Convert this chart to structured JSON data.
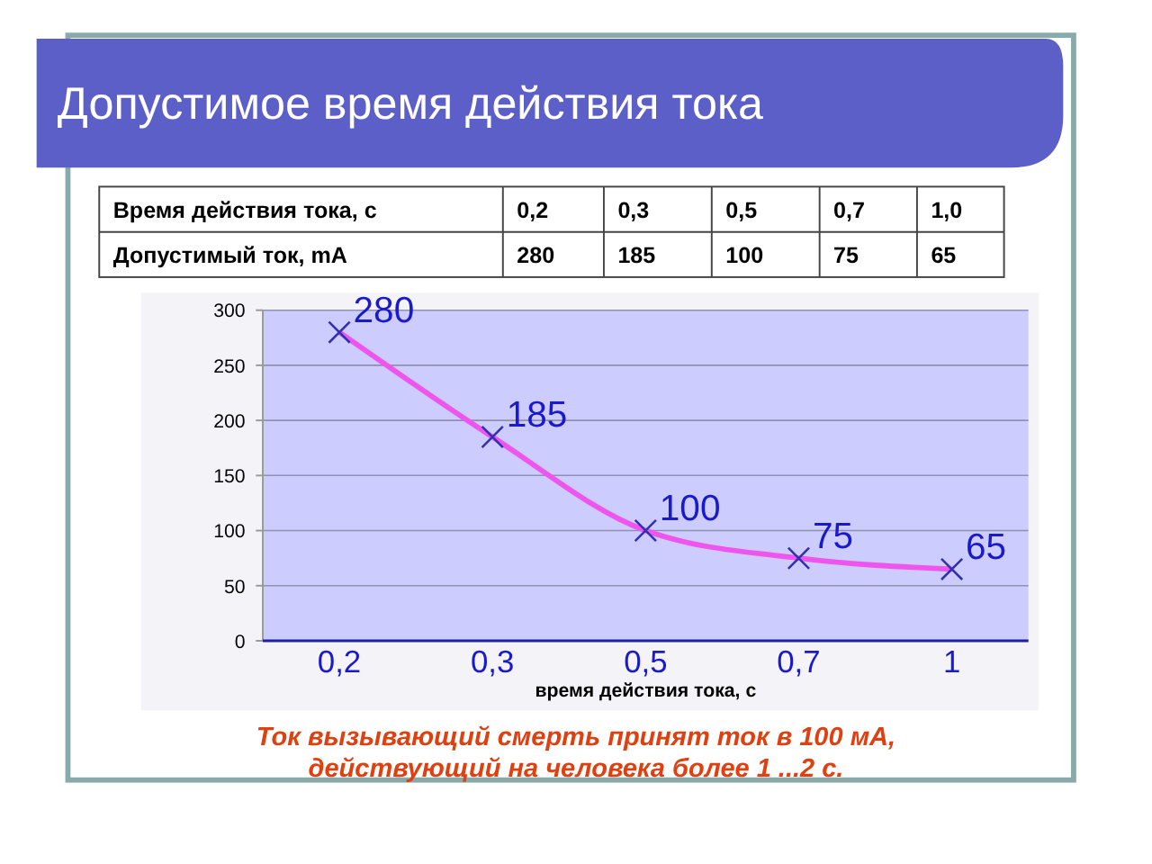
{
  "chart_data": {
    "type": "line",
    "title": "Допустимое время действия тока",
    "xlabel": "время действия тока, с",
    "categories": [
      "0,2",
      "0,3",
      "0,5",
      "0,7",
      "1"
    ],
    "series": [
      {
        "color": "#ee55ee",
        "values": [
          280,
          185,
          100,
          75,
          65
        ]
      }
    ],
    "ylim": [
      0,
      300
    ],
    "yticks": [
      0,
      50,
      100,
      150,
      200,
      250,
      300
    ],
    "grid": "y",
    "marker": "cross",
    "data_labels": true,
    "annotations": [
      "Время действия тока, с",
      "Допустимый ток, mA",
      "0,2",
      "0,3",
      "0,5",
      "0,7",
      "1,0",
      "280",
      "185",
      "100",
      "75",
      "65",
      "Ток вызывающий смерть принят ток в 100 мА, действующий на человека более 1 ...2 с."
    ]
  }
}
